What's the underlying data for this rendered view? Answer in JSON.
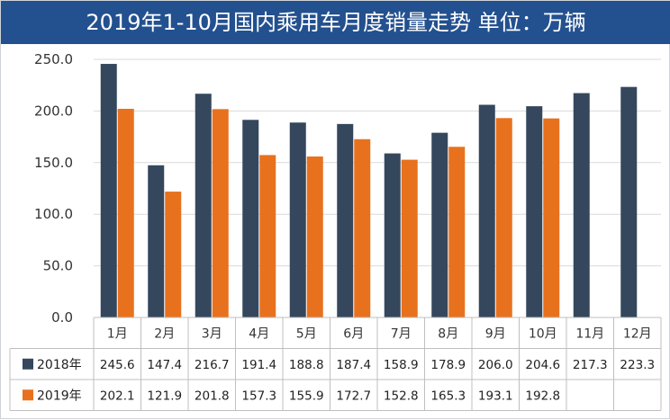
{
  "title": "2019年1-10月国内乘用车月度销量走势  单位：万辆",
  "colors": {
    "header_bg": "#23508f",
    "series_2018": "#34475d",
    "series_2019": "#e8711e",
    "grid": "#d9d9d9",
    "table_border": "#bfbfbf"
  },
  "chart_data": {
    "type": "bar",
    "title": "2019年1-10月国内乘用车月度销量走势  单位：万辆",
    "categories": [
      "1月",
      "2月",
      "3月",
      "4月",
      "5月",
      "6月",
      "7月",
      "8月",
      "9月",
      "10月",
      "11月",
      "12月"
    ],
    "series": [
      {
        "name": "2018年",
        "color": "#34475d",
        "values": [
          245.6,
          147.4,
          216.7,
          191.4,
          188.8,
          187.4,
          158.9,
          178.9,
          206.0,
          204.6,
          217.3,
          223.3
        ]
      },
      {
        "name": "2019年",
        "color": "#e8711e",
        "values": [
          202.1,
          121.9,
          201.8,
          157.3,
          155.9,
          172.7,
          152.8,
          165.3,
          193.1,
          192.8,
          null,
          null
        ]
      }
    ],
    "y_ticks": [
      "0.0",
      "50.0",
      "100.0",
      "150.0",
      "200.0",
      "250.0"
    ],
    "ylim": [
      0,
      250
    ],
    "grid": true,
    "legend": "data-table-left",
    "data_table": true
  }
}
